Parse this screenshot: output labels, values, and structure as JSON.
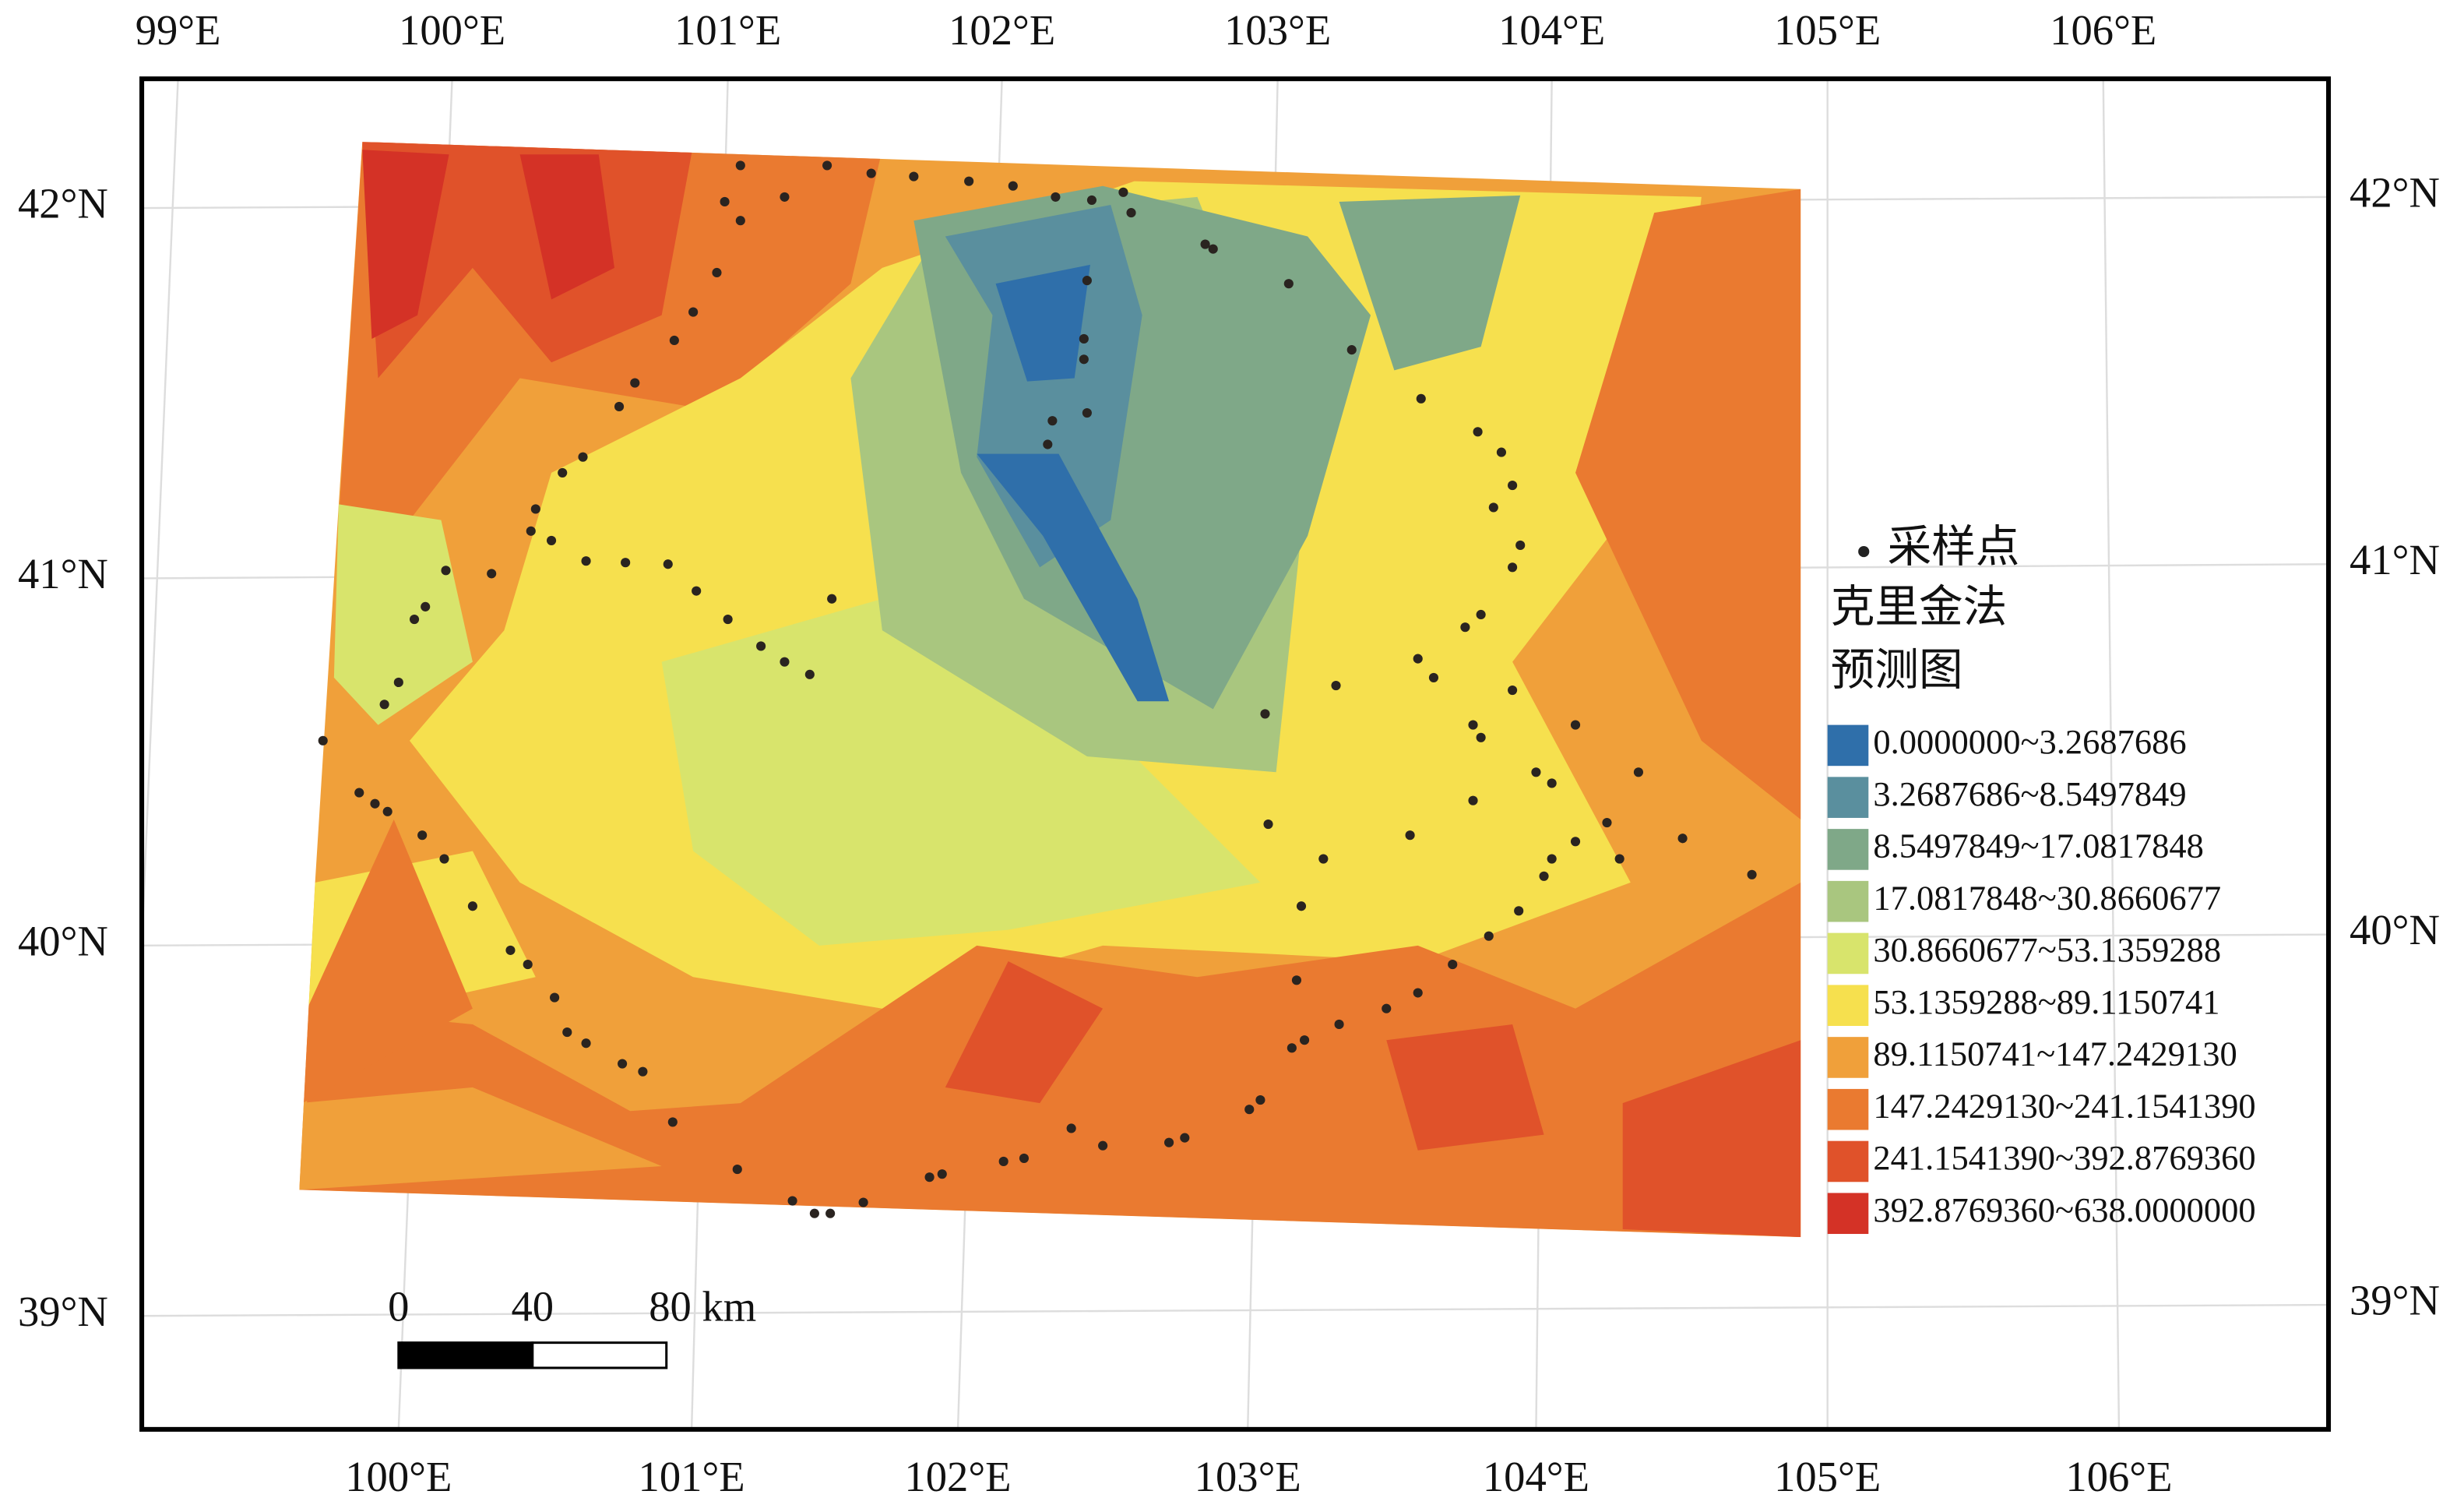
{
  "map": {
    "top_labels": [
      "99°E",
      "100°E",
      "101°E",
      "102°E",
      "103°E",
      "104°E",
      "105°E",
      "106°E"
    ],
    "bottom_labels": [
      "100°E",
      "101°E",
      "102°E",
      "103°E",
      "104°E",
      "105°E",
      "106°E"
    ],
    "left_labels": [
      "42°N",
      "41°N",
      "40°N",
      "39°N"
    ],
    "right_labels": [
      "42°N",
      "41°N",
      "40°N",
      "39°N"
    ],
    "legend": {
      "marker_label": "采样点",
      "title_lines": [
        "克里金法",
        "预测图"
      ],
      "classes": [
        {
          "label": "0.0000000~3.2687686",
          "color": "#2f6faa"
        },
        {
          "label": "3.2687686~8.5497849",
          "color": "#5a8f9e"
        },
        {
          "label": "8.5497849~17.0817848",
          "color": "#7fa888"
        },
        {
          "label": "17.0817848~30.8660677",
          "color": "#a9c67f"
        },
        {
          "label": "30.8660677~53.1359288",
          "color": "#d8e46c"
        },
        {
          "label": "53.1359288~89.1150741",
          "color": "#f6e04e"
        },
        {
          "label": "89.1150741~147.2429130",
          "color": "#f0a03a"
        },
        {
          "label": "147.2429130~241.1541390",
          "color": "#ea7a30"
        },
        {
          "label": "241.1541390~392.8769360",
          "color": "#e0522a"
        },
        {
          "label": "392.8769360~638.0000000",
          "color": "#d43226"
        }
      ]
    },
    "scale_bar": {
      "labels": [
        "0",
        "40",
        "80 km"
      ]
    }
  }
}
